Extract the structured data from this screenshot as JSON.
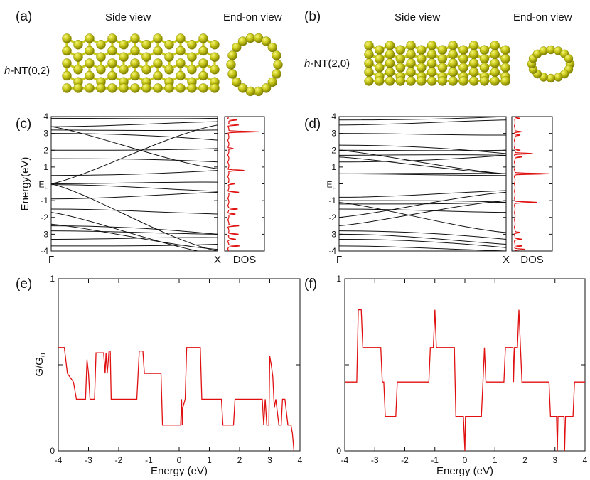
{
  "panels": {
    "a": {
      "label": "(a)",
      "side_view": "Side view",
      "end_view": "End-on view",
      "structure_label_italic": "h",
      "structure_label_rest": "-NT(0,2)"
    },
    "b": {
      "label": "(b)",
      "side_view": "Side view",
      "end_view": "End-on view",
      "structure_label_italic": "h",
      "structure_label_rest": "-NT(2,0)"
    },
    "c": {
      "label": "(c)"
    },
    "d": {
      "label": "(d)"
    },
    "e": {
      "label": "(e)"
    },
    "f": {
      "label": "(f)"
    }
  },
  "colors": {
    "atom": "#c8c81a",
    "atom_highlight": "#eeee55",
    "atom_shadow": "#8a8a00",
    "band_line": "#111111",
    "dos_line": "#e01010",
    "transmission_line": "#e01010",
    "axis": "#111111"
  },
  "chart_data": [
    {
      "id": "c",
      "type": "line",
      "kind": "band-structure",
      "ylabel": "Energy(eV)",
      "ef_label_main": "E",
      "ef_label_sub": "F",
      "xticks": [
        "Γ",
        "X"
      ],
      "ylim": [
        -4,
        4
      ],
      "yticks": [
        4,
        3,
        2,
        1,
        -1,
        -2,
        -3,
        -4
      ],
      "bands_start_end": [
        [
          3.9,
          3.9
        ],
        [
          3.4,
          3.7
        ],
        [
          3.2,
          3.2
        ],
        [
          3.0,
          2.6
        ],
        [
          2.0,
          2.1
        ],
        [
          1.5,
          1.3
        ],
        [
          0.5,
          0.8
        ],
        [
          0.0,
          0.1
        ],
        [
          -0.05,
          -0.45
        ],
        [
          -0.9,
          -0.5
        ],
        [
          -1.5,
          -1.8
        ],
        [
          -2.5,
          -3.0
        ],
        [
          -2.8,
          -3.0
        ],
        [
          -3.3,
          -3.2
        ],
        [
          -3.7,
          -3.6
        ]
      ],
      "crossing_bands_start_end": [
        [
          0.0,
          3.5
        ],
        [
          0.0,
          -4.0
        ],
        [
          3.4,
          0.9
        ],
        [
          -2.4,
          -3.9
        ],
        [
          -1.7,
          -4.2
        ]
      ]
    },
    {
      "id": "c-dos",
      "type": "line",
      "kind": "dos",
      "xlabel": "DOS",
      "ylim": [
        -4,
        4
      ],
      "peaks": [
        {
          "e": 3.1,
          "h": 0.85
        },
        {
          "e": 3.5,
          "h": 0.3
        },
        {
          "e": 3.8,
          "h": 0.25
        },
        {
          "e": 2.1,
          "h": 0.15
        },
        {
          "e": 0.8,
          "h": 0.45
        },
        {
          "e": 0.0,
          "h": 0.2
        },
        {
          "e": -0.5,
          "h": 0.3
        },
        {
          "e": -1.5,
          "h": 0.25
        },
        {
          "e": -1.8,
          "h": 0.2
        },
        {
          "e": -2.5,
          "h": 0.3
        },
        {
          "e": -3.0,
          "h": 0.3
        },
        {
          "e": -3.3,
          "h": 0.2
        },
        {
          "e": -3.7,
          "h": 0.3
        }
      ],
      "baseline": 0.08
    },
    {
      "id": "d",
      "type": "line",
      "kind": "band-structure",
      "ylabel": "",
      "ef_label_main": "E",
      "ef_label_sub": "F",
      "xticks": [
        "Γ",
        "X"
      ],
      "ylim": [
        -4,
        4
      ],
      "yticks": [
        4,
        3,
        2,
        1,
        -1,
        -2,
        -3,
        -4
      ],
      "bands_start_end": [
        [
          3.8,
          4.0
        ],
        [
          3.5,
          3.8
        ],
        [
          3.0,
          2.9
        ],
        [
          2.3,
          1.8
        ],
        [
          2.0,
          2.0
        ],
        [
          1.7,
          1.7
        ],
        [
          1.3,
          1.7
        ],
        [
          0.6,
          0.6
        ],
        [
          0.6,
          0.5
        ],
        [
          -1.0,
          -1.1
        ],
        [
          -1.2,
          -1.1
        ],
        [
          -0.8,
          -0.4
        ],
        [
          -1.5,
          -1.7
        ],
        [
          -2.8,
          -3.3
        ],
        [
          -3.0,
          -3.6
        ],
        [
          -3.3,
          -3.8
        ],
        [
          -3.7,
          -4.0
        ]
      ],
      "crossing_bands_start_end": [
        [
          2.0,
          0.6
        ],
        [
          1.6,
          0.6
        ],
        [
          -1.1,
          -2.9
        ],
        [
          -2.0,
          -0.5
        ],
        [
          -2.5,
          -1.0
        ]
      ]
    },
    {
      "id": "d-dos",
      "type": "line",
      "kind": "dos",
      "xlabel": "DOS",
      "ylim": [
        -4,
        4
      ],
      "peaks": [
        {
          "e": 3.9,
          "h": 0.15
        },
        {
          "e": 3.1,
          "h": 0.2
        },
        {
          "e": 2.9,
          "h": 0.15
        },
        {
          "e": 2.0,
          "h": 0.15
        },
        {
          "e": 1.8,
          "h": 0.5
        },
        {
          "e": 1.6,
          "h": 0.2
        },
        {
          "e": 0.6,
          "h": 0.95
        },
        {
          "e": -1.1,
          "h": 0.6
        },
        {
          "e": -2.9,
          "h": 0.15
        },
        {
          "e": -3.3,
          "h": 0.2
        },
        {
          "e": -3.7,
          "h": 0.2
        },
        {
          "e": -3.9,
          "h": 0.3
        }
      ],
      "baseline": 0.05
    },
    {
      "id": "e",
      "type": "line",
      "kind": "transmission",
      "xlabel": "Energy (eV)",
      "ylabel_main": "G/G",
      "ylabel_sub": "0",
      "xlim": [
        -4,
        4
      ],
      "ylim": [
        0,
        1
      ],
      "xticks": [
        -4,
        -3,
        -2,
        -1,
        0,
        1,
        2,
        3,
        4
      ],
      "yticks_labeled": [
        0,
        1
      ],
      "points": [
        [
          -4.0,
          0.6
        ],
        [
          -3.8,
          0.6
        ],
        [
          -3.7,
          0.45
        ],
        [
          -3.5,
          0.4
        ],
        [
          -3.4,
          0.3
        ],
        [
          -3.1,
          0.3
        ],
        [
          -3.05,
          0.53
        ],
        [
          -3.0,
          0.45
        ],
        [
          -2.95,
          0.3
        ],
        [
          -2.8,
          0.3
        ],
        [
          -2.75,
          0.57
        ],
        [
          -2.5,
          0.57
        ],
        [
          -2.45,
          0.45
        ],
        [
          -2.42,
          0.57
        ],
        [
          -2.38,
          0.45
        ],
        [
          -2.32,
          0.58
        ],
        [
          -2.28,
          0.58
        ],
        [
          -2.25,
          0.3
        ],
        [
          -1.4,
          0.3
        ],
        [
          -1.32,
          0.58
        ],
        [
          -1.2,
          0.58
        ],
        [
          -1.15,
          0.45
        ],
        [
          -0.6,
          0.45
        ],
        [
          -0.55,
          0.15
        ],
        [
          0.05,
          0.15
        ],
        [
          0.08,
          0.3
        ],
        [
          0.1,
          0.15
        ],
        [
          0.12,
          0.25
        ],
        [
          0.2,
          0.3
        ],
        [
          0.25,
          0.6
        ],
        [
          0.7,
          0.6
        ],
        [
          0.75,
          0.3
        ],
        [
          1.4,
          0.3
        ],
        [
          1.45,
          0.15
        ],
        [
          1.8,
          0.15
        ],
        [
          1.85,
          0.3
        ],
        [
          2.75,
          0.3
        ],
        [
          2.8,
          0.15
        ],
        [
          2.85,
          0.3
        ],
        [
          2.9,
          0.15
        ],
        [
          2.97,
          0.15
        ],
        [
          3.0,
          0.55
        ],
        [
          3.05,
          0.5
        ],
        [
          3.1,
          0.43
        ],
        [
          3.15,
          0.25
        ],
        [
          3.2,
          0.3
        ],
        [
          3.3,
          0.15
        ],
        [
          3.38,
          0.15
        ],
        [
          3.42,
          0.3
        ],
        [
          3.5,
          0.3
        ],
        [
          3.6,
          0.15
        ],
        [
          3.7,
          0.15
        ],
        [
          3.75,
          0.1
        ],
        [
          3.8,
          0.0
        ]
      ]
    },
    {
      "id": "f",
      "type": "line",
      "kind": "transmission",
      "xlabel": "Energy (eV)",
      "ylabel_main": "",
      "ylabel_sub": "",
      "xlim": [
        -4,
        4
      ],
      "ylim": [
        0,
        1
      ],
      "xticks": [
        -4,
        -3,
        -2,
        -1,
        0,
        1,
        2,
        3,
        4
      ],
      "yticks_labeled": [
        0,
        1
      ],
      "points": [
        [
          -4.0,
          0.4
        ],
        [
          -3.6,
          0.4
        ],
        [
          -3.55,
          0.82
        ],
        [
          -3.45,
          0.82
        ],
        [
          -3.4,
          0.6
        ],
        [
          -2.8,
          0.6
        ],
        [
          -2.75,
          0.4
        ],
        [
          -2.7,
          0.4
        ],
        [
          -2.65,
          0.2
        ],
        [
          -2.3,
          0.2
        ],
        [
          -2.25,
          0.4
        ],
        [
          -1.2,
          0.4
        ],
        [
          -1.15,
          0.6
        ],
        [
          -1.05,
          0.6
        ],
        [
          -1.0,
          0.82
        ],
        [
          -0.95,
          0.6
        ],
        [
          -0.35,
          0.6
        ],
        [
          -0.3,
          0.2
        ],
        [
          -0.05,
          0.2
        ],
        [
          0.0,
          0.0
        ],
        [
          0.02,
          0.2
        ],
        [
          0.55,
          0.2
        ],
        [
          0.6,
          0.4
        ],
        [
          0.65,
          0.6
        ],
        [
          0.7,
          0.4
        ],
        [
          1.3,
          0.4
        ],
        [
          1.35,
          0.6
        ],
        [
          1.6,
          0.6
        ],
        [
          1.62,
          0.4
        ],
        [
          1.65,
          0.6
        ],
        [
          1.75,
          0.6
        ],
        [
          1.8,
          0.82
        ],
        [
          1.85,
          0.6
        ],
        [
          1.9,
          0.4
        ],
        [
          2.8,
          0.4
        ],
        [
          2.85,
          0.2
        ],
        [
          3.05,
          0.2
        ],
        [
          3.08,
          0.0
        ],
        [
          3.1,
          0.2
        ],
        [
          3.3,
          0.2
        ],
        [
          3.32,
          0.0
        ],
        [
          3.35,
          0.2
        ],
        [
          3.6,
          0.2
        ],
        [
          3.65,
          0.4
        ],
        [
          4.0,
          0.4
        ]
      ]
    }
  ]
}
